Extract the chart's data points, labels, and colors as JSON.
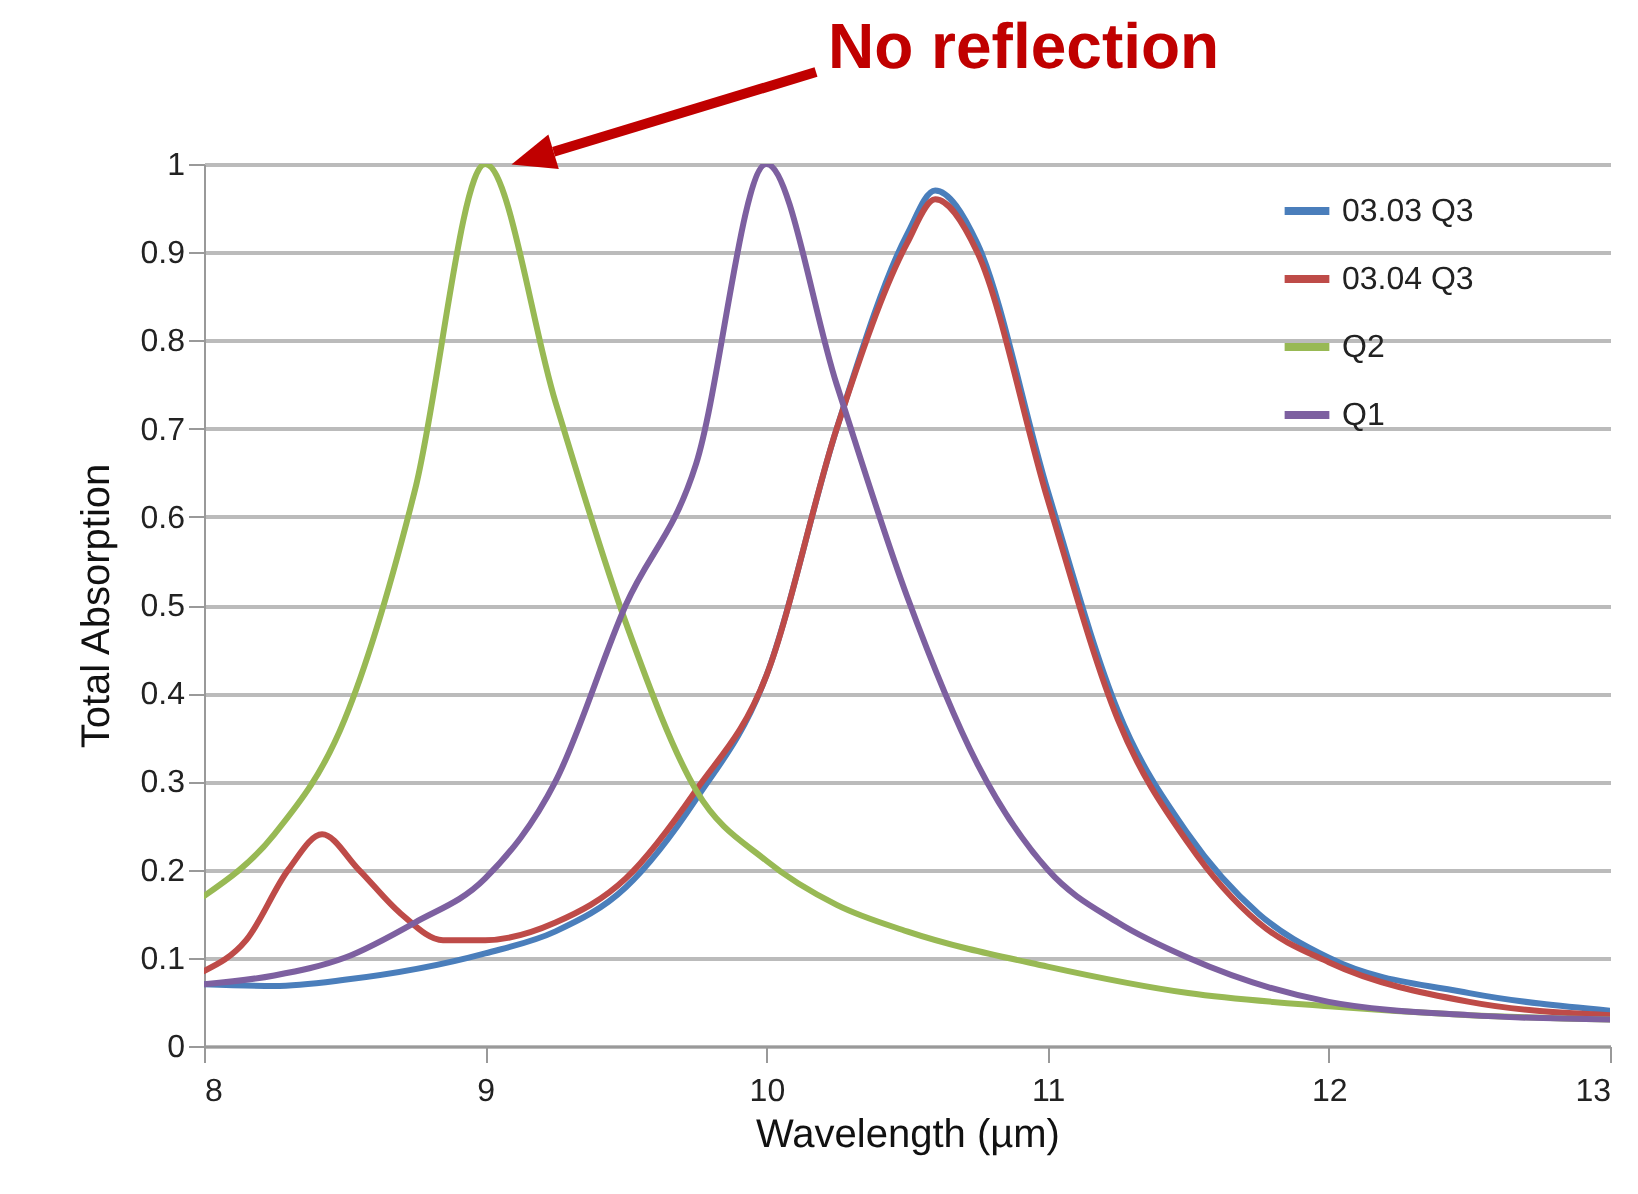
{
  "chart_data": {
    "type": "line",
    "xlabel": "Wavelength (µm)",
    "ylabel": "Total Absorption",
    "annotations": [
      "No reflection"
    ],
    "xlim": [
      8,
      13
    ],
    "xticks": [
      8,
      9,
      10,
      11,
      12,
      13
    ],
    "ylim": [
      0,
      1
    ],
    "yticks": [
      0,
      0.1,
      0.2,
      0.3,
      0.4,
      0.5,
      0.6,
      0.7,
      0.8,
      0.9,
      1
    ],
    "grid": "y",
    "legend": "top right",
    "line_style": "solid",
    "marker": "none",
    "series": [
      {
        "name": "03.03 Q3",
        "color": "#4a7ebb",
        "x": [
          8,
          8.25,
          8.5,
          9,
          9.25,
          9.5,
          9.75,
          10,
          10.25,
          10.5,
          10.6,
          10.75,
          11,
          11.25,
          11.5,
          11.75,
          12,
          12.5,
          13
        ],
        "values": [
          0.07,
          0.068,
          0.075,
          0.105,
          0.13,
          0.18,
          0.28,
          0.42,
          0.7,
          0.92,
          0.97,
          0.91,
          0.63,
          0.38,
          0.24,
          0.15,
          0.1,
          0.06,
          0.04
        ]
      },
      {
        "name": "03.04 Q3",
        "color": "#be4b48",
        "x": [
          8,
          8.15,
          8.3,
          8.42,
          8.55,
          8.7,
          8.85,
          9,
          9.25,
          9.5,
          9.75,
          10,
          10.25,
          10.5,
          10.6,
          10.75,
          11,
          11.25,
          11.5,
          11.75,
          12,
          12.5,
          13
        ],
        "values": [
          0.085,
          0.12,
          0.2,
          0.24,
          0.2,
          0.15,
          0.12,
          0.12,
          0.14,
          0.19,
          0.29,
          0.42,
          0.7,
          0.91,
          0.96,
          0.9,
          0.62,
          0.37,
          0.23,
          0.14,
          0.095,
          0.05,
          0.035
        ]
      },
      {
        "name": "Q2",
        "color": "#98b954",
        "x": [
          8,
          8.25,
          8.5,
          8.75,
          9,
          9.25,
          9.5,
          9.75,
          10,
          10.25,
          10.5,
          11,
          11.5,
          12,
          12.5,
          13
        ],
        "values": [
          0.17,
          0.24,
          0.37,
          0.63,
          1.0,
          0.73,
          0.48,
          0.29,
          0.21,
          0.16,
          0.13,
          0.09,
          0.06,
          0.045,
          0.035,
          0.03
        ]
      },
      {
        "name": "Q1",
        "color": "#7d60a0",
        "x": [
          8,
          8.25,
          8.5,
          8.75,
          9,
          9.25,
          9.5,
          9.75,
          10,
          10.25,
          10.5,
          10.75,
          11,
          11.25,
          11.5,
          12,
          12.5,
          13
        ],
        "values": [
          0.07,
          0.08,
          0.1,
          0.14,
          0.19,
          0.3,
          0.5,
          0.66,
          1.0,
          0.75,
          0.51,
          0.32,
          0.2,
          0.14,
          0.1,
          0.05,
          0.035,
          0.03
        ]
      }
    ]
  }
}
